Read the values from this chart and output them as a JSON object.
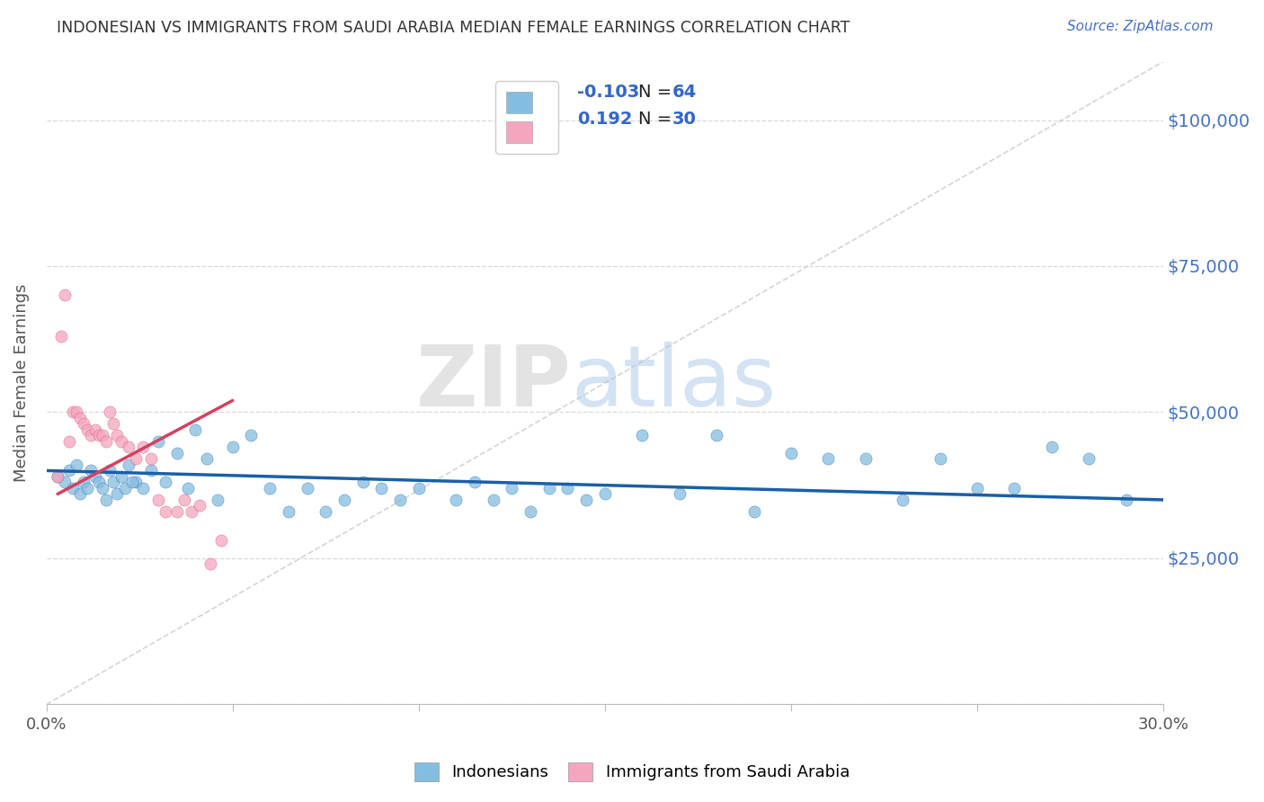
{
  "title": "INDONESIAN VS IMMIGRANTS FROM SAUDI ARABIA MEDIAN FEMALE EARNINGS CORRELATION CHART",
  "source": "Source: ZipAtlas.com",
  "ylabel": "Median Female Earnings",
  "xlim": [
    0.0,
    0.3
  ],
  "ylim": [
    0,
    110000
  ],
  "yticks": [
    0,
    25000,
    50000,
    75000,
    100000
  ],
  "ytick_labels": [
    "",
    "$25,000",
    "$50,000",
    "$75,000",
    "$100,000"
  ],
  "xticks": [
    0.0,
    0.05,
    0.1,
    0.15,
    0.2,
    0.25,
    0.3
  ],
  "color_blue": "#85bde0",
  "color_pink": "#f4a6be",
  "color_blue_line": "#1a5fa8",
  "color_pink_line": "#d44060",
  "color_ref_line": "#d0d0d0",
  "blue_scatter_x": [
    0.003,
    0.005,
    0.006,
    0.007,
    0.008,
    0.009,
    0.01,
    0.011,
    0.012,
    0.013,
    0.014,
    0.015,
    0.016,
    0.017,
    0.018,
    0.019,
    0.02,
    0.021,
    0.022,
    0.024,
    0.026,
    0.028,
    0.03,
    0.032,
    0.035,
    0.038,
    0.04,
    0.043,
    0.046,
    0.05,
    0.055,
    0.06,
    0.065,
    0.07,
    0.075,
    0.08,
    0.085,
    0.09,
    0.095,
    0.1,
    0.11,
    0.115,
    0.12,
    0.125,
    0.13,
    0.135,
    0.14,
    0.145,
    0.15,
    0.16,
    0.17,
    0.18,
    0.19,
    0.2,
    0.21,
    0.22,
    0.23,
    0.24,
    0.25,
    0.26,
    0.27,
    0.28,
    0.29,
    0.023
  ],
  "blue_scatter_y": [
    39000,
    38000,
    40000,
    37000,
    41000,
    36000,
    38000,
    37000,
    40000,
    39000,
    38000,
    37000,
    35000,
    40000,
    38000,
    36000,
    39000,
    37000,
    41000,
    38000,
    37000,
    40000,
    45000,
    38000,
    43000,
    37000,
    47000,
    42000,
    35000,
    44000,
    46000,
    37000,
    33000,
    37000,
    33000,
    35000,
    38000,
    37000,
    35000,
    37000,
    35000,
    38000,
    35000,
    37000,
    33000,
    37000,
    37000,
    35000,
    36000,
    46000,
    36000,
    46000,
    33000,
    43000,
    42000,
    42000,
    35000,
    42000,
    37000,
    37000,
    44000,
    42000,
    35000,
    38000
  ],
  "pink_scatter_x": [
    0.003,
    0.004,
    0.005,
    0.006,
    0.007,
    0.008,
    0.009,
    0.01,
    0.011,
    0.012,
    0.013,
    0.014,
    0.015,
    0.016,
    0.017,
    0.018,
    0.019,
    0.02,
    0.022,
    0.024,
    0.026,
    0.028,
    0.03,
    0.032,
    0.035,
    0.037,
    0.039,
    0.041,
    0.044,
    0.047
  ],
  "pink_scatter_y": [
    39000,
    63000,
    70000,
    45000,
    50000,
    50000,
    49000,
    48000,
    47000,
    46000,
    47000,
    46000,
    46000,
    45000,
    50000,
    48000,
    46000,
    45000,
    44000,
    42000,
    44000,
    42000,
    35000,
    33000,
    33000,
    35000,
    33000,
    34000,
    24000,
    28000
  ],
  "blue_trend_x": [
    0.0,
    0.3
  ],
  "blue_trend_y": [
    40000,
    35000
  ],
  "pink_trend_x": [
    0.003,
    0.05
  ],
  "pink_trend_y": [
    36000,
    52000
  ]
}
